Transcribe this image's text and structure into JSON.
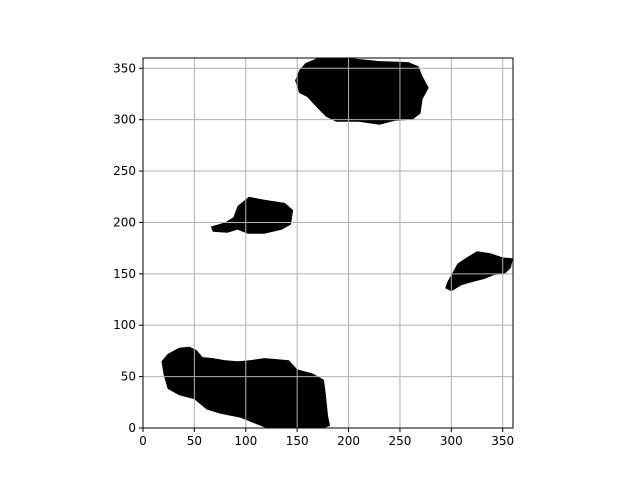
{
  "chart_data": {
    "type": "heatmap",
    "title": "",
    "xlabel": "",
    "ylabel": "",
    "xlim": [
      0,
      360
    ],
    "ylim": [
      0,
      360
    ],
    "grid": true,
    "x_ticks": [
      0,
      50,
      100,
      150,
      200,
      250,
      300,
      350
    ],
    "y_ticks": [
      0,
      50,
      100,
      150,
      200,
      250,
      300,
      350
    ],
    "colors": {
      "foreground": "#000000",
      "background": "#ffffff",
      "grid": "#b0b0b0"
    },
    "regions": [
      {
        "name": "",
        "polygon": [
          [
            18,
            65
          ],
          [
            24,
            72
          ],
          [
            35,
            78
          ],
          [
            45,
            79
          ],
          [
            52,
            76
          ],
          [
            58,
            69
          ],
          [
            68,
            68
          ],
          [
            80,
            66
          ],
          [
            92,
            65
          ],
          [
            104,
            66
          ],
          [
            118,
            68
          ],
          [
            130,
            67
          ],
          [
            142,
            66
          ],
          [
            150,
            57
          ],
          [
            165,
            53
          ],
          [
            176,
            47
          ],
          [
            178,
            32
          ],
          [
            180,
            12
          ],
          [
            182,
            2
          ],
          [
            176,
            0
          ],
          [
            150,
            0
          ],
          [
            120,
            0
          ],
          [
            95,
            10
          ],
          [
            75,
            14
          ],
          [
            62,
            18
          ],
          [
            50,
            28
          ],
          [
            35,
            32
          ],
          [
            24,
            38
          ],
          [
            20,
            52
          ]
        ]
      },
      {
        "name": "",
        "polygon": [
          [
            66,
            196
          ],
          [
            80,
            200
          ],
          [
            88,
            205
          ],
          [
            92,
            216
          ],
          [
            103,
            225
          ],
          [
            118,
            222
          ],
          [
            138,
            219
          ],
          [
            146,
            212
          ],
          [
            144,
            198
          ],
          [
            135,
            193
          ],
          [
            118,
            189
          ],
          [
            102,
            189
          ],
          [
            92,
            193
          ],
          [
            82,
            190
          ],
          [
            68,
            191
          ]
        ]
      },
      {
        "name": "",
        "polygon": [
          [
            294,
            136
          ],
          [
            296,
            142
          ],
          [
            300,
            149
          ],
          [
            306,
            160
          ],
          [
            315,
            166
          ],
          [
            325,
            172
          ],
          [
            338,
            170
          ],
          [
            350,
            166
          ],
          [
            360,
            165
          ],
          [
            358,
            156
          ],
          [
            352,
            150
          ],
          [
            342,
            149
          ],
          [
            332,
            145
          ],
          [
            320,
            142
          ],
          [
            310,
            139
          ],
          [
            300,
            133
          ]
        ]
      },
      {
        "name": "",
        "polygon": [
          [
            148,
            338
          ],
          [
            152,
            348
          ],
          [
            158,
            355
          ],
          [
            170,
            360
          ],
          [
            200,
            360
          ],
          [
            230,
            357
          ],
          [
            258,
            356
          ],
          [
            268,
            352
          ],
          [
            272,
            342
          ],
          [
            278,
            331
          ],
          [
            272,
            320
          ],
          [
            270,
            306
          ],
          [
            262,
            300
          ],
          [
            245,
            299
          ],
          [
            230,
            295
          ],
          [
            210,
            298
          ],
          [
            188,
            298
          ],
          [
            178,
            303
          ],
          [
            168,
            313
          ],
          [
            160,
            322
          ],
          [
            152,
            326
          ]
        ]
      }
    ]
  }
}
